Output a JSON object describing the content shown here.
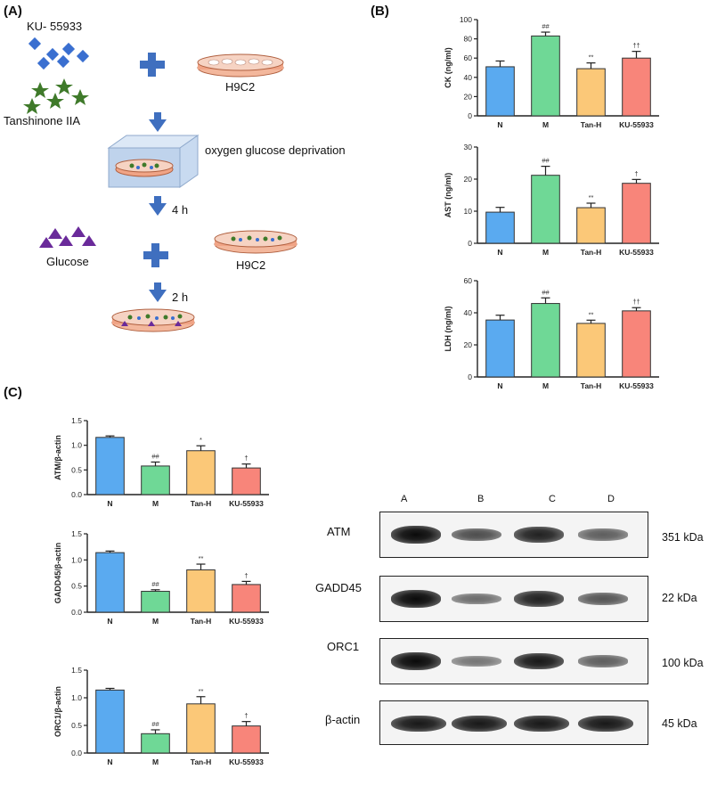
{
  "panels": {
    "a": "(A)",
    "b": "(B)",
    "c": "(C)"
  },
  "scheme": {
    "inhibitor_name": "KU-  55933",
    "compound_name": "Tanshinone IIA",
    "cell_line_1": "H9C2",
    "treatment": "oxygen glucose deprivation",
    "time_1": "4 h",
    "reagent": "Glucose",
    "cell_line_2": "H9C2",
    "time_2": "2 h",
    "colors": {
      "arrow": "#3f6fbf",
      "plus": "#3f6fbf",
      "diamond": "#3a6fd0",
      "star": "#3f7a2a",
      "triangle": "#6a2a9a",
      "dish": "#f0a486",
      "box": "#bfd3ec"
    }
  },
  "chart_colors": {
    "N": "#5aaaf0",
    "M": "#6fd896",
    "Tan-H": "#fbc878",
    "KU-55933": "#f8857a"
  },
  "chart_data": [
    {
      "type": "bar",
      "panel": "B",
      "categories": [
        "N",
        "M",
        "Tan-H",
        "KU-55933"
      ],
      "values": [
        51,
        83,
        49,
        60
      ],
      "errors": [
        6,
        4,
        6,
        7
      ],
      "annotations": [
        "",
        "##",
        "**",
        "††"
      ],
      "ylabel": "CK (ng/ml)",
      "ylim": [
        0,
        100
      ],
      "yticks": [
        "0",
        "20",
        "40",
        "60",
        "80",
        "100"
      ]
    },
    {
      "type": "bar",
      "panel": "B",
      "categories": [
        "N",
        "M",
        "Tan-H",
        "KU-55933"
      ],
      "values": [
        9.7,
        21.2,
        11.1,
        18.7
      ],
      "errors": [
        1.5,
        2.8,
        1.4,
        1.2
      ],
      "annotations": [
        "",
        "##",
        "**",
        "†"
      ],
      "ylabel": "AST (ng/ml)",
      "ylim": [
        0,
        30
      ],
      "yticks": [
        "0",
        "10",
        "20",
        "30"
      ]
    },
    {
      "type": "bar",
      "panel": "B",
      "categories": [
        "N",
        "M",
        "Tan-H",
        "KU-55933"
      ],
      "values": [
        35.5,
        45.8,
        33.4,
        41.2
      ],
      "errors": [
        3,
        3.5,
        2,
        2
      ],
      "annotations": [
        "",
        "##",
        "**",
        "††"
      ],
      "ylabel": "LDH (ng/ml)",
      "ylim": [
        0,
        60
      ],
      "yticks": [
        "0",
        "20",
        "40",
        "60"
      ]
    },
    {
      "type": "bar",
      "panel": "C",
      "categories": [
        "N",
        "M",
        "Tan-H",
        "KU-55933"
      ],
      "values": [
        1.16,
        0.58,
        0.89,
        0.54
      ],
      "errors": [
        0.03,
        0.08,
        0.1,
        0.08
      ],
      "annotations": [
        "",
        "##",
        "*",
        "†"
      ],
      "ylabel": "ATM/β-actin",
      "ylim": [
        0,
        1.5
      ],
      "yticks": [
        "0.0",
        "0.5",
        "1.0",
        "1.5"
      ]
    },
    {
      "type": "bar",
      "panel": "C",
      "categories": [
        "N",
        "M",
        "Tan-H",
        "KU-55933"
      ],
      "values": [
        1.14,
        0.4,
        0.81,
        0.53
      ],
      "errors": [
        0.03,
        0.03,
        0.11,
        0.06
      ],
      "annotations": [
        "",
        "##",
        "**",
        "†"
      ],
      "ylabel": "GADD45/β-actin",
      "ylim": [
        0,
        1.5
      ],
      "yticks": [
        "0.0",
        "0.5",
        "1.0",
        "1.5"
      ]
    },
    {
      "type": "bar",
      "panel": "C",
      "categories": [
        "N",
        "M",
        "Tan-H",
        "KU-55933"
      ],
      "values": [
        1.14,
        0.35,
        0.89,
        0.49
      ],
      "errors": [
        0.03,
        0.07,
        0.13,
        0.08
      ],
      "annotations": [
        "",
        "##",
        "**",
        "†"
      ],
      "ylabel": "ORC1/β-actin",
      "ylim": [
        0,
        1.5
      ],
      "yticks": [
        "0.0",
        "0.5",
        "1.0",
        "1.5"
      ]
    }
  ],
  "blot": {
    "lanes": [
      "A",
      "B",
      "C",
      "D"
    ],
    "rows": [
      {
        "protein": "ATM",
        "size": "351 kDa",
        "intensity": [
          1.0,
          0.55,
          0.85,
          0.45
        ]
      },
      {
        "protein": "GADD45",
        "size": "22  kDa",
        "intensity": [
          1.0,
          0.35,
          0.85,
          0.5
        ]
      },
      {
        "protein": "ORC1",
        "size": "100 kDa",
        "intensity": [
          1.0,
          0.3,
          0.9,
          0.45
        ]
      },
      {
        "protein": "β-actin",
        "size": "45  kDa",
        "intensity": [
          0.9,
          0.9,
          0.9,
          0.9
        ]
      }
    ]
  }
}
